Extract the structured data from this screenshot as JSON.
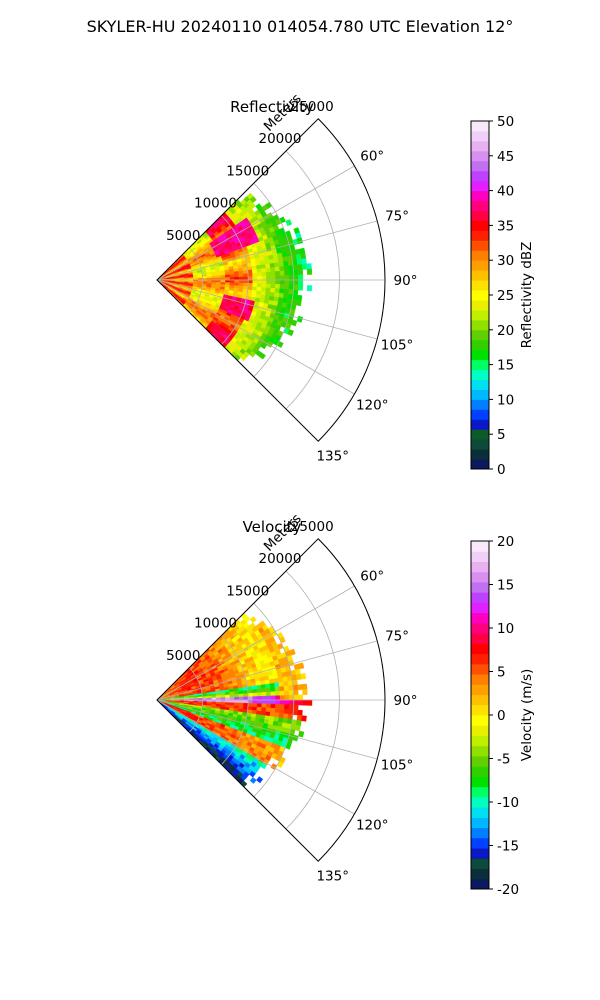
{
  "figure": {
    "suptitle": "SKYLER-HU  20240110  014054.780 UTC Elevation 12°"
  },
  "chart_data": [
    {
      "type": "polar-sector",
      "title": "Reflectivity",
      "radial_label": "Meters",
      "r_ticks": [
        5000,
        10000,
        15000,
        20000,
        25000
      ],
      "r_max": 25000,
      "theta_ticks_deg": [
        60,
        75,
        90,
        105,
        120,
        135
      ],
      "theta_tick_labels": [
        "60°",
        "75°",
        "90°",
        "105°",
        "120°",
        "135°"
      ],
      "theta_range_deg": [
        45,
        135
      ],
      "data_extent_m": 17000,
      "grid": true,
      "colorbar": {
        "label": "Reflectivity dBZ",
        "min": 0,
        "max": 50,
        "ticks": [
          0,
          5,
          10,
          15,
          20,
          25,
          30,
          35,
          40,
          45,
          50
        ],
        "colors": [
          "#0a1a5c",
          "#0b2f3a",
          "#0d4a3a",
          "#0a5a2a",
          "#0a18c8",
          "#0040ff",
          "#0080ff",
          "#00b8ff",
          "#00e0f0",
          "#00ffc0",
          "#00ff60",
          "#00e000",
          "#30d000",
          "#60d000",
          "#90e000",
          "#c0f000",
          "#e8f000",
          "#ffff00",
          "#ffe000",
          "#ffc000",
          "#ffa000",
          "#ff8000",
          "#ff5000",
          "#ff2000",
          "#ff0000",
          "#ff0040",
          "#ff0080",
          "#ff00c0",
          "#e020ff",
          "#c040ff",
          "#c070f0",
          "#d890f0",
          "#e8b0f0",
          "#f0d0f8",
          "#f8e8fc"
        ]
      }
    },
    {
      "type": "polar-sector",
      "title": "Velocity",
      "radial_label": "Meters",
      "r_ticks": [
        5000,
        10000,
        15000,
        20000,
        25000
      ],
      "r_max": 25000,
      "theta_ticks_deg": [
        60,
        75,
        90,
        105,
        120,
        135
      ],
      "theta_tick_labels": [
        "60°",
        "75°",
        "90°",
        "105°",
        "120°",
        "135°"
      ],
      "theta_range_deg": [
        45,
        135
      ],
      "data_extent_m": 17000,
      "grid": true,
      "colorbar": {
        "label": "Velocity (m/s)",
        "min": -20,
        "max": 20,
        "ticks": [
          -20,
          -15,
          -10,
          -5,
          0,
          5,
          10,
          15,
          20
        ],
        "colors": [
          "#0a1a5c",
          "#0b2f3a",
          "#0d4a3a",
          "#0a18c8",
          "#0040ff",
          "#0080ff",
          "#00b8ff",
          "#00e0f0",
          "#00ffc0",
          "#00ff60",
          "#00e000",
          "#30d000",
          "#60d000",
          "#90e000",
          "#c0f000",
          "#e8f000",
          "#ffff00",
          "#ffe000",
          "#ffc000",
          "#ffa000",
          "#ff8000",
          "#ff5000",
          "#ff2000",
          "#ff0000",
          "#ff0040",
          "#ff0080",
          "#ff00c0",
          "#e020ff",
          "#c040ff",
          "#c070f0",
          "#d890f0",
          "#e8b0f0",
          "#f0d0f8",
          "#f8e8fc"
        ]
      }
    }
  ]
}
